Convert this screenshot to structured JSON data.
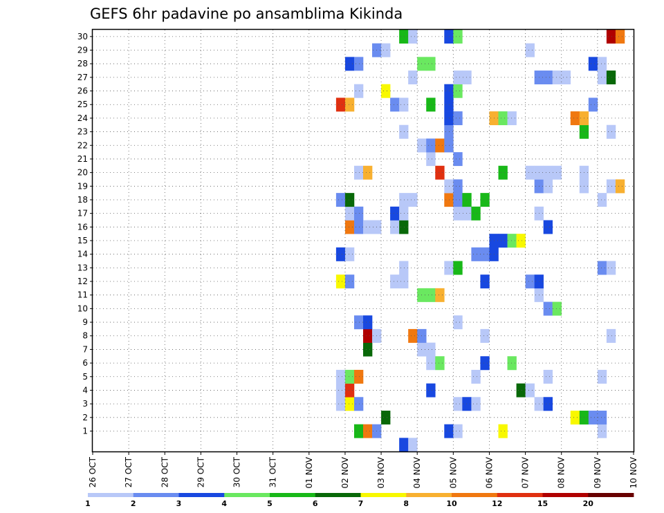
{
  "chart_data": {
    "type": "heatmap",
    "title": "GEFS 6hr padavine po ansamblima Kikinda",
    "xlabel": "",
    "ylabel": "",
    "x_tick_labels": [
      "26 OCT",
      "27 OCT",
      "28 OCT",
      "29 OCT",
      "30 OCT",
      "31 OCT",
      "01 NOV",
      "02 NOV",
      "03 NOV",
      "04 NOV",
      "05 NOV",
      "06 NOV",
      "07 NOV",
      "08 NOV",
      "09 NOV",
      "10 NOV"
    ],
    "y_tick_labels": [
      "1",
      "2",
      "3",
      "4",
      "5",
      "6",
      "7",
      "8",
      "9",
      "10",
      "11",
      "12",
      "13",
      "14",
      "15",
      "16",
      "17",
      "18",
      "19",
      "20",
      "21",
      "22",
      "23",
      "24",
      "25",
      "26",
      "27",
      "28",
      "29",
      "30"
    ],
    "xlim_days": [
      0,
      15
    ],
    "ylim": [
      0,
      30
    ],
    "grid": true,
    "x_step_hours": 6,
    "colorbar": {
      "thresholds": [
        "1",
        "2",
        "3",
        "4",
        "5",
        "6",
        "7",
        "8",
        "10",
        "12",
        "15",
        "20"
      ],
      "colors": [
        "#b8c8f8",
        "#6a8cf0",
        "#1848e0",
        "#6ae860",
        "#18b818",
        "#086808",
        "#f8f800",
        "#f8b030",
        "#f07810",
        "#e03010",
        "#b00000",
        "#680000"
      ]
    },
    "cells": [
      [
        0,
        34,
        2
      ],
      [
        0,
        35,
        0
      ],
      [
        1,
        29,
        4
      ],
      [
        1,
        30,
        8
      ],
      [
        1,
        31,
        1
      ],
      [
        1,
        39,
        2
      ],
      [
        1,
        40,
        0
      ],
      [
        1,
        45,
        6
      ],
      [
        1,
        56,
        0
      ],
      [
        2,
        32,
        5
      ],
      [
        2,
        53,
        6
      ],
      [
        2,
        54,
        4
      ],
      [
        2,
        55,
        1
      ],
      [
        2,
        56,
        1
      ],
      [
        3,
        27,
        0
      ],
      [
        3,
        28,
        6
      ],
      [
        3,
        29,
        1
      ],
      [
        3,
        40,
        0
      ],
      [
        3,
        41,
        2
      ],
      [
        3,
        42,
        0
      ],
      [
        3,
        49,
        0
      ],
      [
        3,
        50,
        2
      ],
      [
        4,
        27,
        0
      ],
      [
        4,
        28,
        9
      ],
      [
        4,
        37,
        2
      ],
      [
        4,
        47,
        5
      ],
      [
        4,
        48,
        0
      ],
      [
        5,
        27,
        0
      ],
      [
        5,
        28,
        3
      ],
      [
        5,
        29,
        8
      ],
      [
        5,
        42,
        0
      ],
      [
        5,
        50,
        0
      ],
      [
        5,
        56,
        0
      ],
      [
        6,
        37,
        0
      ],
      [
        6,
        38,
        3
      ],
      [
        6,
        43,
        2
      ],
      [
        6,
        46,
        3
      ],
      [
        7,
        30,
        5
      ],
      [
        7,
        36,
        0
      ],
      [
        7,
        37,
        0
      ],
      [
        8,
        30,
        10
      ],
      [
        8,
        31,
        0
      ],
      [
        8,
        35,
        8
      ],
      [
        8,
        36,
        1
      ],
      [
        8,
        43,
        0
      ],
      [
        8,
        57,
        0
      ],
      [
        9,
        29,
        1
      ],
      [
        9,
        30,
        2
      ],
      [
        9,
        40,
        0
      ],
      [
        10,
        50,
        1
      ],
      [
        10,
        51,
        3
      ],
      [
        11,
        36,
        3
      ],
      [
        11,
        37,
        3
      ],
      [
        11,
        38,
        7
      ],
      [
        11,
        49,
        0
      ],
      [
        12,
        27,
        6
      ],
      [
        12,
        28,
        1
      ],
      [
        12,
        33,
        0
      ],
      [
        12,
        34,
        0
      ],
      [
        12,
        43,
        2
      ],
      [
        12,
        48,
        1
      ],
      [
        12,
        49,
        2
      ],
      [
        13,
        34,
        0
      ],
      [
        13,
        39,
        0
      ],
      [
        13,
        40,
        4
      ],
      [
        13,
        56,
        1
      ],
      [
        13,
        57,
        0
      ],
      [
        14,
        27,
        2
      ],
      [
        14,
        28,
        0
      ],
      [
        14,
        42,
        1
      ],
      [
        14,
        43,
        1
      ],
      [
        14,
        44,
        2
      ],
      [
        15,
        44,
        2
      ],
      [
        15,
        45,
        2
      ],
      [
        15,
        46,
        3
      ],
      [
        15,
        47,
        6
      ],
      [
        16,
        28,
        8
      ],
      [
        16,
        29,
        1
      ],
      [
        16,
        30,
        0
      ],
      [
        16,
        31,
        0
      ],
      [
        16,
        33,
        0
      ],
      [
        16,
        34,
        5
      ],
      [
        16,
        50,
        2
      ],
      [
        17,
        28,
        0
      ],
      [
        17,
        29,
        1
      ],
      [
        17,
        33,
        2
      ],
      [
        17,
        34,
        0
      ],
      [
        17,
        40,
        0
      ],
      [
        17,
        41,
        0
      ],
      [
        17,
        42,
        4
      ],
      [
        17,
        49,
        0
      ],
      [
        18,
        27,
        1
      ],
      [
        18,
        28,
        5
      ],
      [
        18,
        34,
        0
      ],
      [
        18,
        35,
        0
      ],
      [
        18,
        39,
        8
      ],
      [
        18,
        40,
        1
      ],
      [
        18,
        41,
        4
      ],
      [
        18,
        43,
        4
      ],
      [
        18,
        56,
        0
      ],
      [
        19,
        39,
        0
      ],
      [
        19,
        40,
        1
      ],
      [
        19,
        49,
        1
      ],
      [
        19,
        50,
        0
      ],
      [
        19,
        54,
        0
      ],
      [
        19,
        57,
        0
      ],
      [
        19,
        58,
        7
      ],
      [
        20,
        29,
        0
      ],
      [
        20,
        30,
        7
      ],
      [
        20,
        38,
        9
      ],
      [
        20,
        45,
        4
      ],
      [
        20,
        48,
        0
      ],
      [
        20,
        49,
        0
      ],
      [
        20,
        50,
        0
      ],
      [
        20,
        51,
        0
      ],
      [
        20,
        54,
        0
      ],
      [
        21,
        37,
        0
      ],
      [
        21,
        40,
        1
      ],
      [
        22,
        36,
        0
      ],
      [
        22,
        37,
        1
      ],
      [
        22,
        38,
        8
      ],
      [
        22,
        39,
        1
      ],
      [
        23,
        34,
        0
      ],
      [
        23,
        39,
        1
      ],
      [
        23,
        54,
        4
      ],
      [
        23,
        57,
        0
      ],
      [
        24,
        39,
        2
      ],
      [
        24,
        40,
        1
      ],
      [
        24,
        44,
        7
      ],
      [
        24,
        45,
        3
      ],
      [
        24,
        46,
        0
      ],
      [
        24,
        53,
        8
      ],
      [
        24,
        54,
        7
      ],
      [
        25,
        27,
        9
      ],
      [
        25,
        28,
        7
      ],
      [
        25,
        33,
        1
      ],
      [
        25,
        34,
        0
      ],
      [
        25,
        37,
        4
      ],
      [
        25,
        39,
        2
      ],
      [
        25,
        55,
        1
      ],
      [
        26,
        29,
        0
      ],
      [
        26,
        32,
        6
      ],
      [
        26,
        39,
        2
      ],
      [
        26,
        40,
        3
      ],
      [
        27,
        35,
        0
      ],
      [
        27,
        40,
        0
      ],
      [
        27,
        41,
        0
      ],
      [
        27,
        49,
        1
      ],
      [
        27,
        50,
        1
      ],
      [
        27,
        51,
        0
      ],
      [
        27,
        52,
        0
      ],
      [
        27,
        56,
        0
      ],
      [
        27,
        57,
        5
      ],
      [
        28,
        28,
        2
      ],
      [
        28,
        29,
        1
      ],
      [
        28,
        36,
        3
      ],
      [
        28,
        37,
        3
      ],
      [
        28,
        55,
        2
      ],
      [
        28,
        56,
        0
      ],
      [
        29,
        31,
        1
      ],
      [
        29,
        32,
        0
      ],
      [
        29,
        48,
        0
      ],
      [
        30,
        34,
        4
      ],
      [
        30,
        35,
        0
      ],
      [
        30,
        39,
        2
      ],
      [
        30,
        40,
        3
      ],
      [
        30,
        57,
        10
      ],
      [
        30,
        58,
        8
      ]
    ]
  }
}
